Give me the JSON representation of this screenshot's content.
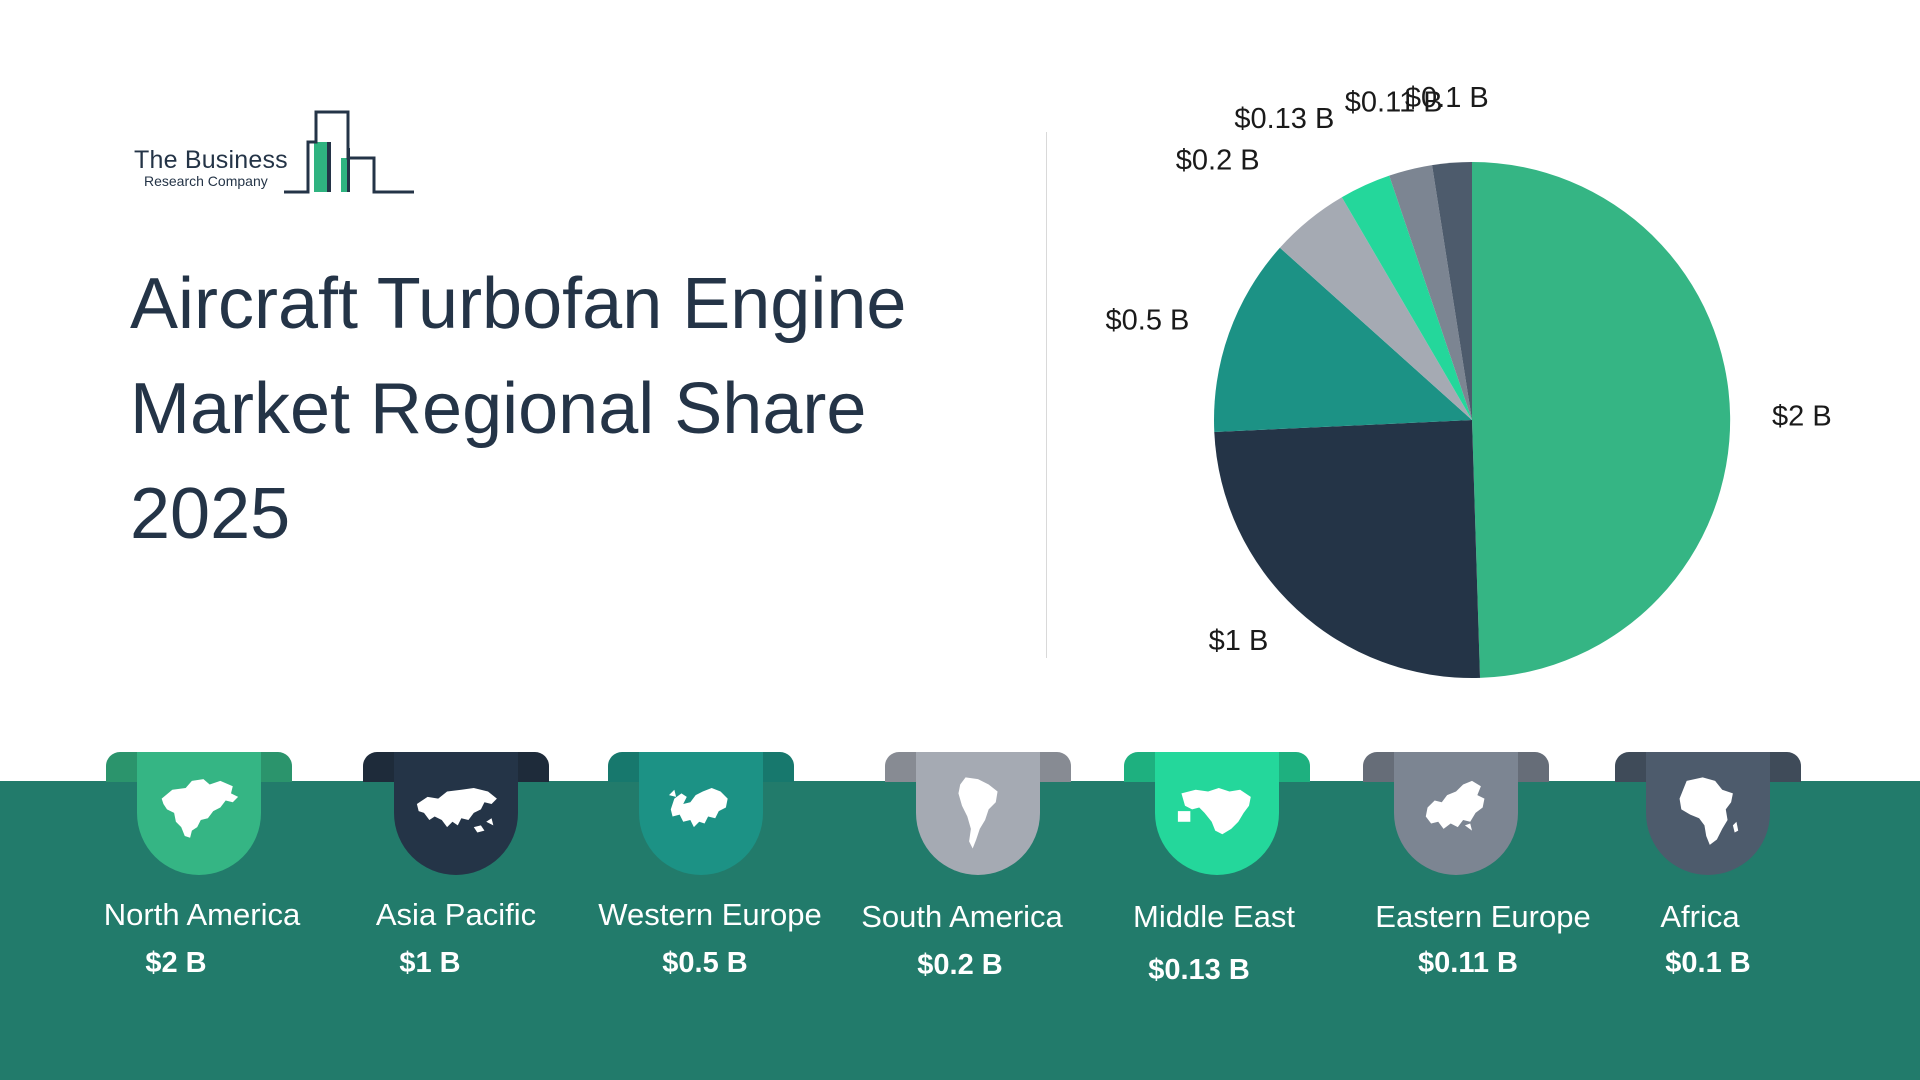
{
  "logo": {
    "line1": "The Business",
    "line2": "Research Company"
  },
  "title_lines": [
    "Aircraft Turbofan Engine",
    "Market Regional Share",
    "2025"
  ],
  "colors": {
    "band": "#227b6b",
    "text_dark": "#243447",
    "north_america": "#35b584",
    "asia_pacific": "#243447",
    "western_europe": "#1c9285",
    "south_america": "#a5aab3",
    "middle_east": "#24d79b",
    "eastern_europe": "#7c8592",
    "africa": "#4d5b6c"
  },
  "chart_data": {
    "type": "pie",
    "categories": [
      "North America",
      "Asia Pacific",
      "Western Europe",
      "South America",
      "Middle East",
      "Eastern Europe",
      "Africa"
    ],
    "values": [
      2,
      1,
      0.5,
      0.2,
      0.13,
      0.11,
      0.1
    ],
    "data_labels": [
      "$2 B",
      "$1 B",
      "$0.5 B",
      "$0.2 B",
      "$0.13 B",
      "$0.11 B",
      "$0.1 B"
    ],
    "unit": "$ B",
    "start": "12 o'clock",
    "direction": "clockwise",
    "legend": "bottom"
  },
  "regions": [
    {
      "name": "North America",
      "value": "$2 B",
      "icon": "north-america-map-icon"
    },
    {
      "name": "Asia Pacific",
      "value": "$1 B",
      "icon": "asia-map-icon"
    },
    {
      "name": "Western Europe",
      "value": "$0.5 B",
      "icon": "western-europe-map-icon"
    },
    {
      "name": "South America",
      "value": "$0.2 B",
      "icon": "south-america-map-icon"
    },
    {
      "name": "Middle East",
      "value": "$0.13 B",
      "icon": "middle-east-map-icon"
    },
    {
      "name": "Eastern Europe",
      "value": "$0.11 B",
      "icon": "eastern-europe-map-icon"
    },
    {
      "name": "Africa",
      "value": "$0.1 B",
      "icon": "africa-map-icon"
    }
  ]
}
